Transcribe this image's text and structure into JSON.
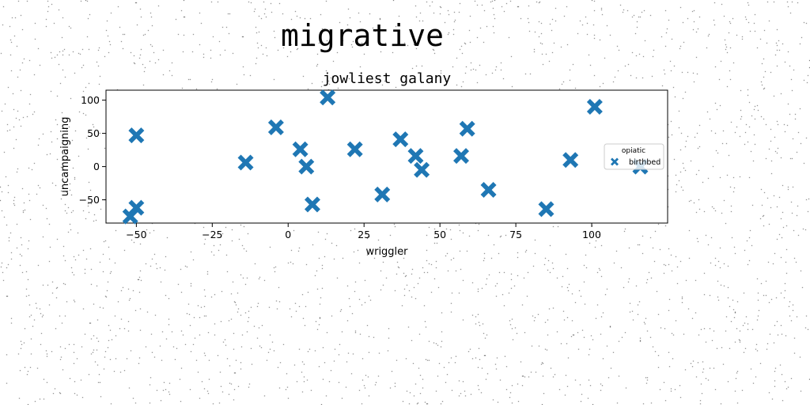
{
  "chart_data": {
    "type": "scatter",
    "title": "migrative",
    "subtitle": "jowliest galany",
    "xlabel": "wriggler",
    "ylabel": "uncampaigning",
    "xlim": [
      -60,
      125
    ],
    "ylim": [
      -85,
      115
    ],
    "xticks": [
      -50,
      -25,
      0,
      25,
      50,
      75,
      100
    ],
    "yticks": [
      -50,
      0,
      50,
      100
    ],
    "grid": false,
    "legend": {
      "title": "opiatic",
      "placement": "right",
      "entries": [
        "birthbed"
      ]
    },
    "marker": "X",
    "colors": {
      "series": "#1f77b4"
    },
    "series": [
      {
        "name": "birthbed",
        "points": [
          {
            "x": -52,
            "y": -75
          },
          {
            "x": -50,
            "y": -62
          },
          {
            "x": -50,
            "y": 47
          },
          {
            "x": -14,
            "y": 6
          },
          {
            "x": -4,
            "y": 59
          },
          {
            "x": 4,
            "y": 26
          },
          {
            "x": 6,
            "y": 0
          },
          {
            "x": 8,
            "y": -57
          },
          {
            "x": 13,
            "y": 104
          },
          {
            "x": 22,
            "y": 26
          },
          {
            "x": 31,
            "y": -42
          },
          {
            "x": 37,
            "y": 41
          },
          {
            "x": 42,
            "y": 16
          },
          {
            "x": 44,
            "y": -5
          },
          {
            "x": 57,
            "y": 16
          },
          {
            "x": 59,
            "y": 57
          },
          {
            "x": 66,
            "y": -35
          },
          {
            "x": 85,
            "y": -64
          },
          {
            "x": 93,
            "y": 10
          },
          {
            "x": 101,
            "y": 90
          },
          {
            "x": 116,
            "y": 0
          }
        ]
      }
    ]
  }
}
